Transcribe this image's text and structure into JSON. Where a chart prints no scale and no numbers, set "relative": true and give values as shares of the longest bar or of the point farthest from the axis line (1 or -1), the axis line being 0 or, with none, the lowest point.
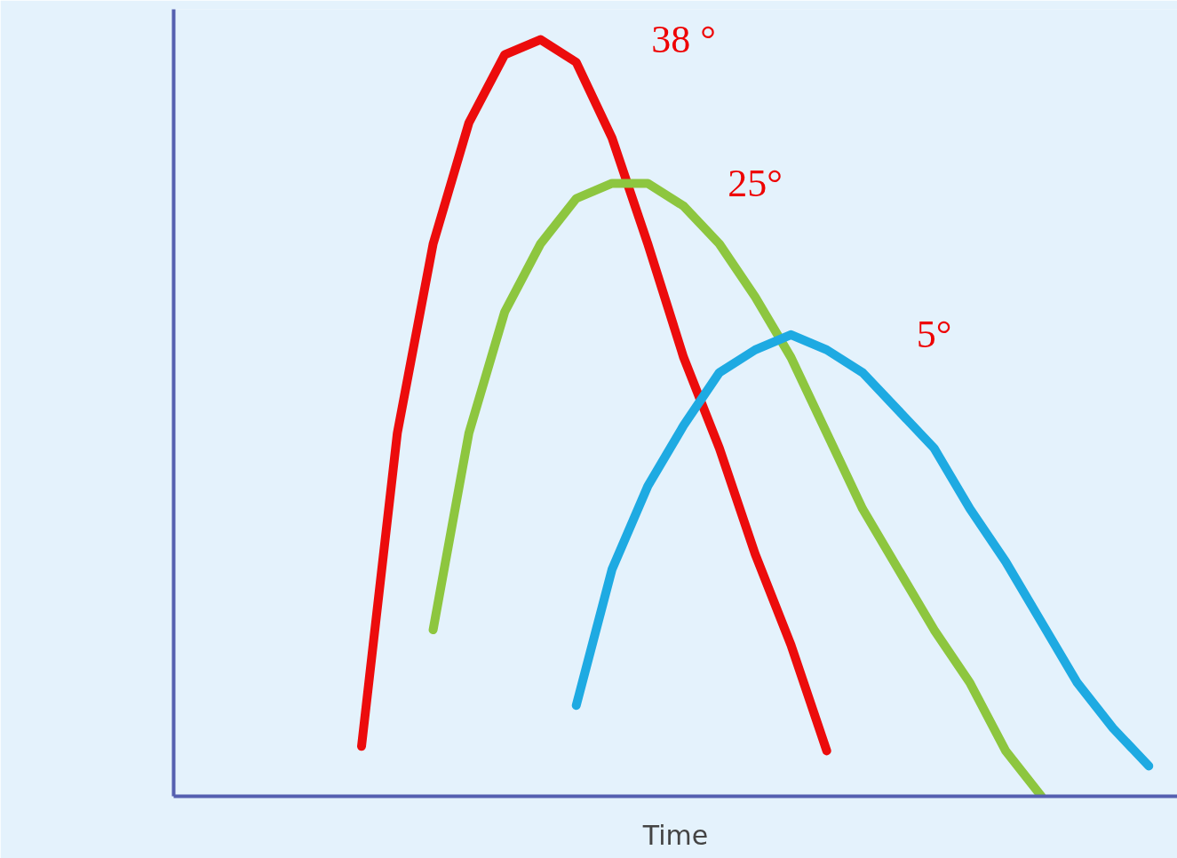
{
  "chart_data": {
    "type": "line",
    "xlabel": "Time",
    "relative": true,
    "grid": false,
    "marker": "none",
    "line_style": "solid",
    "categories": [
      null,
      null,
      null,
      null,
      null,
      null,
      null,
      null,
      null,
      null,
      null,
      null,
      null,
      null,
      null,
      null,
      null,
      null,
      null,
      null,
      null,
      null,
      null
    ],
    "series": [
      {
        "name": "38 °",
        "color": "#ec0c0c",
        "values": [
          0.066,
          0.48,
          0.73,
          0.89,
          0.98,
          1.0,
          0.97,
          0.87,
          0.73,
          0.58,
          0.46,
          0.32,
          0.2,
          0.06,
          null,
          null,
          null,
          null,
          null,
          null,
          null,
          null,
          null
        ]
      },
      {
        "name": "25°",
        "color": "#8dc63f",
        "values": [
          null,
          null,
          0.22,
          0.48,
          0.64,
          0.73,
          0.79,
          0.81,
          0.81,
          0.78,
          0.73,
          0.66,
          0.58,
          0.48,
          0.38,
          0.3,
          0.22,
          0.15,
          0.06,
          0.0,
          null,
          null,
          null
        ]
      },
      {
        "name": "5°",
        "color": "#1eaae2",
        "values": [
          null,
          null,
          null,
          null,
          null,
          null,
          0.12,
          0.3,
          0.41,
          0.49,
          0.56,
          0.59,
          0.61,
          0.59,
          0.56,
          0.51,
          0.46,
          0.38,
          0.31,
          0.23,
          0.15,
          0.09,
          0.04
        ]
      }
    ]
  }
}
